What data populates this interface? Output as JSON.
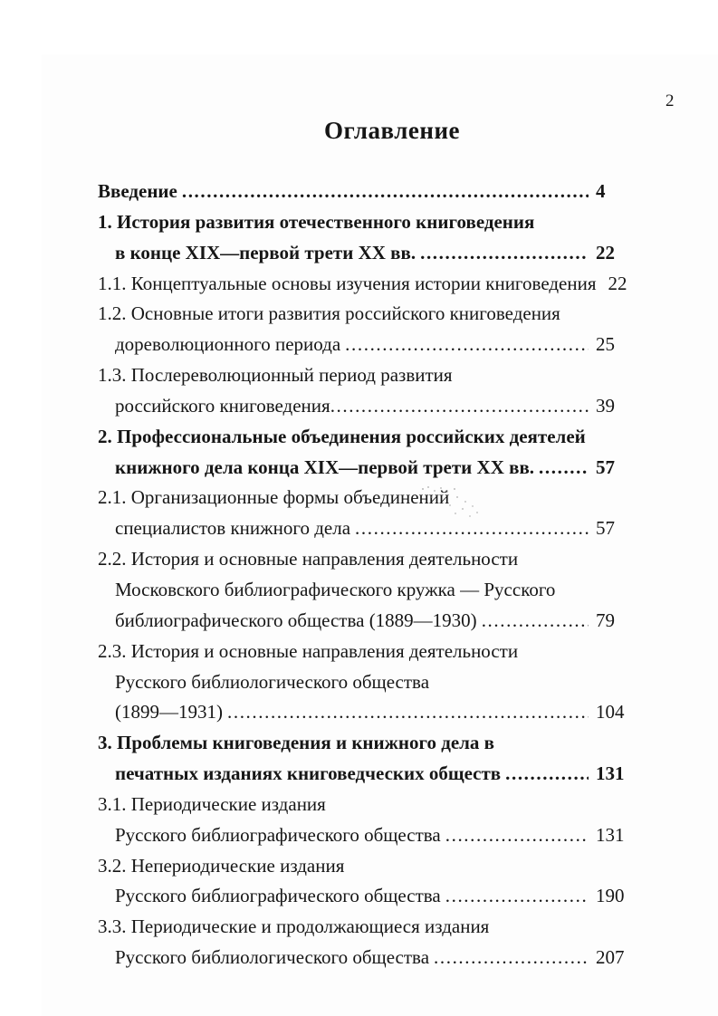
{
  "document": {
    "page_number": "2",
    "title": "Оглавление"
  },
  "colors": {
    "ink": "#161616",
    "paper": "#ffffff"
  },
  "toc": {
    "rows": [
      {
        "text": "Введение",
        "page": "4",
        "bold": true,
        "indent": false
      },
      {
        "text": "1. История развития отечественного книговедения",
        "bold": true,
        "indent": false
      },
      {
        "text": "в конце XIX—первой трети XX вв.",
        "page": "22",
        "bold": true,
        "indent": true
      },
      {
        "text": "1.1. Концептуальные основы изучения истории книговедения",
        "page": "22",
        "bold": false,
        "indent": false
      },
      {
        "text": "1.2. Основные итоги развития российского книговедения",
        "bold": false,
        "indent": false
      },
      {
        "text": "дореволюционного периода",
        "page": "25",
        "bold": false,
        "indent": true
      },
      {
        "text": "1.3. Послереволюционный период развития",
        "bold": false,
        "indent": false
      },
      {
        "text": "российского книговедения",
        "page": "39",
        "bold": false,
        "indent": true,
        "nospace": true
      },
      {
        "text": "2. Профессиональные объединения российских деятелей",
        "bold": true,
        "indent": false
      },
      {
        "text": "книжного дела конца XIX—первой трети XX вв.",
        "page": "57",
        "bold": true,
        "indent": true
      },
      {
        "text": "2.1. Организационные формы объединений",
        "bold": false,
        "indent": false,
        "smudge": true
      },
      {
        "text": "специалистов книжного дела",
        "page": "57",
        "bold": false,
        "indent": true
      },
      {
        "text": "2.2. История и основные направления деятельности",
        "bold": false,
        "indent": false
      },
      {
        "text": "Московского библиографического кружка — Русского",
        "bold": false,
        "indent": true
      },
      {
        "text": "библиографического общества (1889—1930)",
        "page": "79",
        "bold": false,
        "indent": true
      },
      {
        "text": "2.3. История и основные направления деятельности",
        "bold": false,
        "indent": false
      },
      {
        "text": "Русского библиологического общества",
        "bold": false,
        "indent": true
      },
      {
        "text": "(1899—1931)",
        "page": "104",
        "bold": false,
        "indent": true
      },
      {
        "text": "3. Проблемы книговедения и книжного дела в",
        "bold": true,
        "indent": false
      },
      {
        "text": "печатных изданиях книговедческих обществ",
        "page": "131",
        "bold": true,
        "indent": true
      },
      {
        "text": "3.1. Периодические издания",
        "bold": false,
        "indent": false
      },
      {
        "text": "Русского библиографического общества",
        "page": "131",
        "bold": false,
        "indent": true
      },
      {
        "text": "3.2. Непериодические издания",
        "bold": false,
        "indent": false
      },
      {
        "text": "Русского библиографического общества",
        "page": "190",
        "bold": false,
        "indent": true
      },
      {
        "text": "3.3. Периодические и продолжающиеся издания",
        "bold": false,
        "indent": false
      },
      {
        "text": "Русского библиологического общества",
        "page": "207",
        "bold": false,
        "indent": true
      }
    ]
  }
}
